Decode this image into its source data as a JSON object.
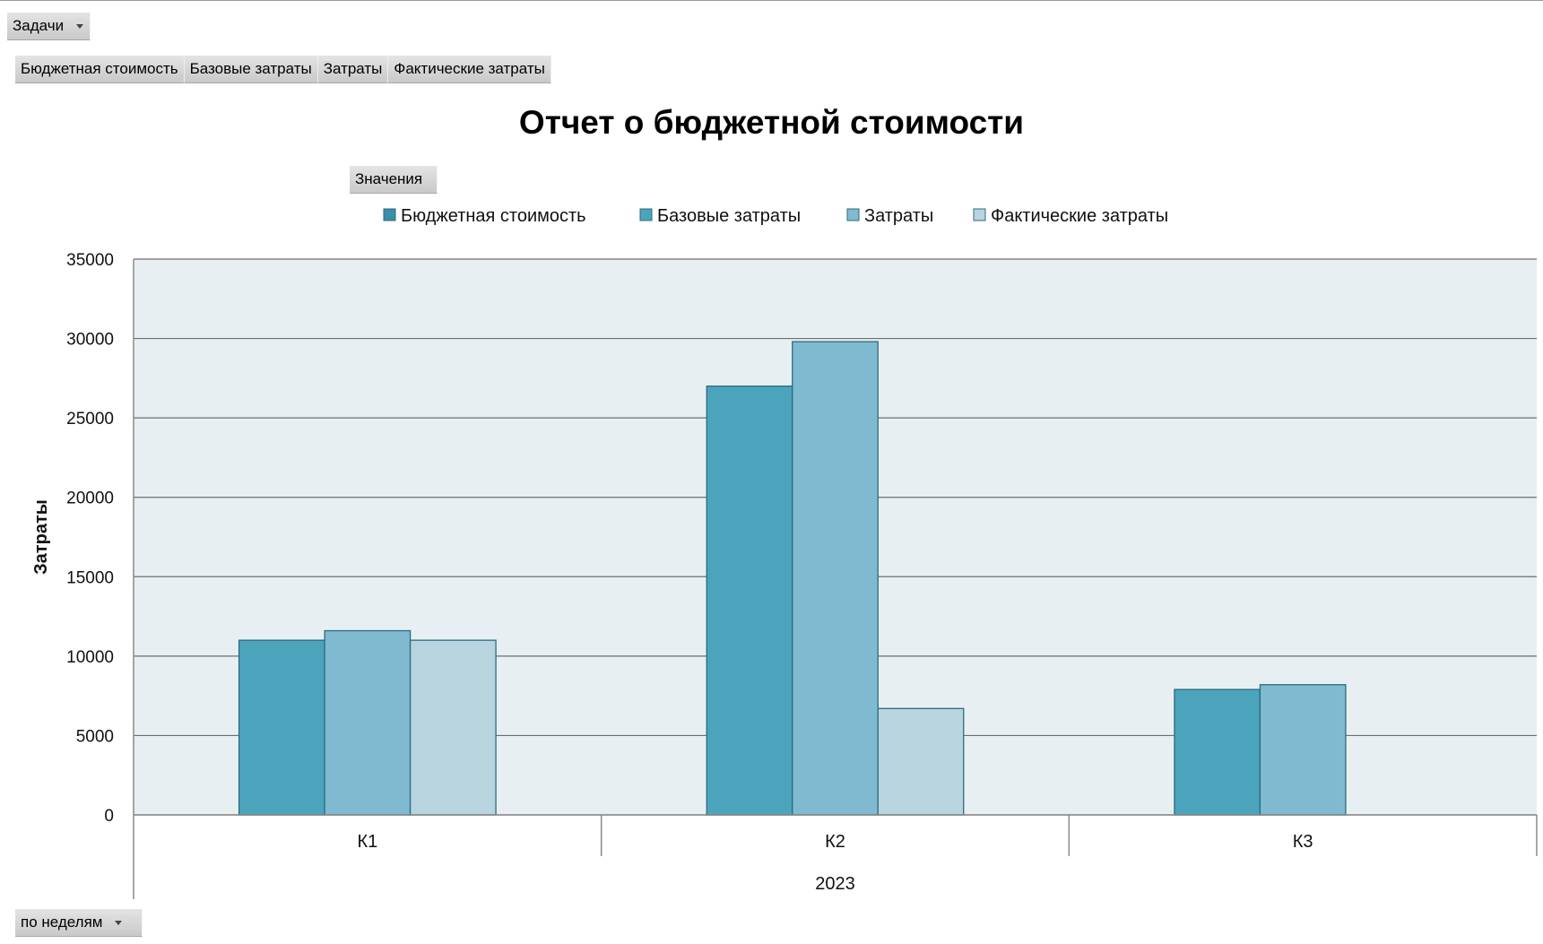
{
  "filter": {
    "label": "Задачи"
  },
  "value_buttons": [
    "Бюджетная стоимость",
    "Базовые затраты",
    "Затраты",
    "Фактические затраты"
  ],
  "values_label": "Значения",
  "period": {
    "label": "по неделям"
  },
  "colors": {
    "plot_bg": "#e8eff2",
    "grid": "#6e6e6e",
    "bar_edge": "#2c6b80",
    "series": [
      "#4ba4bc",
      "#7fbad0",
      "#b7d4df"
    ],
    "legend": [
      "#3a8ea5",
      "#4ba4bc",
      "#7fbad0",
      "#b7d4df"
    ]
  },
  "chart_data": {
    "type": "bar",
    "title": "Отчет о бюджетной стоимости",
    "ylabel": "Затраты",
    "xlabel": "",
    "ylim": [
      0,
      35000
    ],
    "yticks": [
      0,
      5000,
      10000,
      15000,
      20000,
      25000,
      30000,
      35000
    ],
    "grid": true,
    "legend_position": "top",
    "legend": [
      "Бюджетная стоимость",
      "Базовые затраты",
      "Затраты",
      "Фактические затраты"
    ],
    "categories": [
      "К1",
      "К2",
      "К3"
    ],
    "group_label": "2023",
    "series": [
      {
        "name": "Базовые затраты",
        "values": [
          11000,
          27000,
          7900
        ]
      },
      {
        "name": "Затраты",
        "values": [
          11600,
          29800,
          8200
        ]
      },
      {
        "name": "Фактические затраты",
        "values": [
          11000,
          6700,
          0
        ]
      }
    ]
  }
}
